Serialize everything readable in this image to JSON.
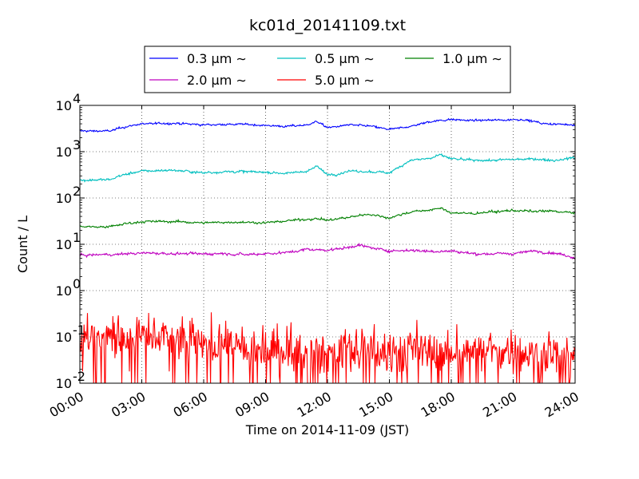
{
  "chart_data": {
    "type": "line",
    "title": "kc01d_20141109.txt",
    "xlabel": "Time on 2014-11-09 (JST)",
    "ylabel": "Count / L",
    "yscale": "log",
    "ylim": [
      0.01,
      10000
    ],
    "xlim": [
      "00:00",
      "24:00"
    ],
    "grid": true,
    "legend_position": "top-center",
    "x_ticks": [
      "00:00",
      "03:00",
      "06:00",
      "09:00",
      "12:00",
      "15:00",
      "18:00",
      "21:00",
      "24:00"
    ],
    "y_ticks": [
      {
        "base": "10",
        "exp": "-2"
      },
      {
        "base": "10",
        "exp": "-1"
      },
      {
        "base": "10",
        "exp": "0"
      },
      {
        "base": "10",
        "exp": "1"
      },
      {
        "base": "10",
        "exp": "2"
      },
      {
        "base": "10",
        "exp": "3"
      },
      {
        "base": "10",
        "exp": "4"
      }
    ],
    "series": [
      {
        "name": "0.3 μm ∼",
        "color": "#0000ff",
        "noise": 0.06,
        "x": [
          "00:00",
          "01:30",
          "02:00",
          "03:00",
          "04:30",
          "06:00",
          "07:00",
          "08:00",
          "09:00",
          "10:00",
          "11:00",
          "11:30",
          "12:00",
          "12:30",
          "13:00",
          "14:00",
          "15:00",
          "16:00",
          "17:00",
          "18:00",
          "19:00",
          "20:00",
          "21:00",
          "21:30",
          "22:30",
          "24:00"
        ],
        "values": [
          2800,
          2800,
          3300,
          4000,
          4100,
          3800,
          3900,
          3900,
          3700,
          3500,
          3800,
          4500,
          3300,
          3500,
          3800,
          3600,
          3000,
          3500,
          4500,
          5000,
          4700,
          4800,
          4900,
          5000,
          4000,
          3800
        ]
      },
      {
        "name": "0.5 μm ∼",
        "color": "#00bfbf",
        "noise": 0.07,
        "x": [
          "00:00",
          "01:30",
          "02:00",
          "03:00",
          "04:30",
          "06:00",
          "07:00",
          "08:00",
          "09:00",
          "10:00",
          "11:00",
          "11:30",
          "12:00",
          "12:30",
          "13:00",
          "14:00",
          "15:00",
          "16:00",
          "17:00",
          "17:30",
          "18:00",
          "19:00",
          "20:00",
          "21:00",
          "22:00",
          "23:00",
          "24:00"
        ],
        "values": [
          240,
          250,
          310,
          380,
          400,
          350,
          370,
          370,
          360,
          340,
          380,
          480,
          320,
          330,
          380,
          370,
          350,
          650,
          720,
          850,
          700,
          650,
          650,
          680,
          700,
          650,
          750
        ]
      },
      {
        "name": "1.0 μm ∼",
        "color": "#008000",
        "noise": 0.07,
        "x": [
          "00:00",
          "01:30",
          "02:00",
          "03:00",
          "04:30",
          "06:00",
          "07:00",
          "08:00",
          "09:00",
          "10:00",
          "11:00",
          "11:30",
          "12:00",
          "13:00",
          "14:00",
          "15:00",
          "16:00",
          "17:00",
          "17:30",
          "18:00",
          "19:00",
          "20:00",
          "21:00",
          "22:00",
          "23:00",
          "24:00"
        ],
        "values": [
          24,
          24,
          27,
          31,
          31,
          29,
          30,
          30,
          29,
          32,
          35,
          36,
          33,
          38,
          45,
          37,
          50,
          55,
          60,
          48,
          46,
          50,
          54,
          51,
          52,
          47
        ]
      },
      {
        "name": "2.0 μm ∼",
        "color": "#bf00bf",
        "noise": 0.08,
        "x": [
          "00:00",
          "01:30",
          "03:00",
          "04:30",
          "06:00",
          "07:00",
          "08:00",
          "09:00",
          "10:00",
          "11:00",
          "12:00",
          "13:00",
          "13:30",
          "14:00",
          "15:00",
          "16:00",
          "17:00",
          "18:00",
          "19:00",
          "20:00",
          "21:00",
          "22:00",
          "23:00",
          "24:00"
        ],
        "values": [
          5.8,
          6.0,
          6.5,
          6.3,
          6.2,
          6.4,
          6.0,
          6.3,
          6.6,
          7.8,
          7.5,
          8.5,
          9.8,
          8.5,
          7.2,
          7.5,
          7.0,
          7.2,
          6.3,
          6.2,
          6.3,
          7.2,
          6.5,
          5.2
        ]
      },
      {
        "name": "5.0 μm ∼",
        "color": "#ff0000",
        "noise": 0.35,
        "sparse": true,
        "x": [
          "00:00",
          "01:30",
          "03:00",
          "04:30",
          "06:00",
          "07:30",
          "09:00",
          "10:30",
          "12:00",
          "13:30",
          "15:00",
          "16:30",
          "18:00",
          "19:30",
          "21:00",
          "22:30",
          "24:00"
        ],
        "values": [
          0.09,
          0.1,
          0.11,
          0.09,
          0.07,
          0.06,
          0.05,
          0.05,
          0.045,
          0.05,
          0.045,
          0.05,
          0.045,
          0.05,
          0.045,
          0.04,
          0.04
        ]
      }
    ]
  }
}
